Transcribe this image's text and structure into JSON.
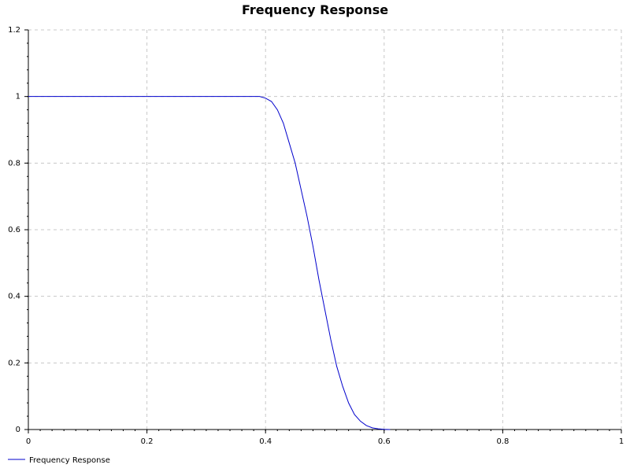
{
  "chart_data": {
    "type": "line",
    "title": "Frequency Response",
    "xlabel": "",
    "ylabel": "",
    "xlim": [
      0,
      1
    ],
    "ylim": [
      0,
      1.2
    ],
    "x_ticks": [
      0,
      0.2,
      0.4,
      0.6,
      0.8,
      1
    ],
    "x_tick_labels": [
      "0",
      "0.2",
      "0.4",
      "0.6",
      "0.8",
      "1"
    ],
    "y_ticks": [
      0,
      0.2,
      0.4,
      0.6,
      0.8,
      1,
      1.2
    ],
    "y_tick_labels": [
      "0",
      "0.2",
      "0.4",
      "0.6",
      "0.8",
      "1",
      "1.2"
    ],
    "grid": true,
    "legend_position": "bottom-left",
    "series": [
      {
        "name": "Frequency Response",
        "color": "#0000cc",
        "x": [
          0,
          0.05,
          0.1,
          0.15,
          0.2,
          0.25,
          0.3,
          0.35,
          0.39,
          0.4,
          0.41,
          0.42,
          0.43,
          0.44,
          0.45,
          0.46,
          0.47,
          0.48,
          0.49,
          0.5,
          0.51,
          0.52,
          0.53,
          0.54,
          0.55,
          0.56,
          0.57,
          0.58,
          0.59,
          0.6,
          0.61
        ],
        "y": [
          1,
          1,
          1,
          1,
          1,
          1,
          1,
          1,
          1,
          0.995,
          0.985,
          0.96,
          0.92,
          0.86,
          0.8,
          0.72,
          0.64,
          0.55,
          0.45,
          0.36,
          0.27,
          0.19,
          0.13,
          0.08,
          0.045,
          0.025,
          0.012,
          0.005,
          0.002,
          0.0005,
          0
        ]
      }
    ]
  }
}
